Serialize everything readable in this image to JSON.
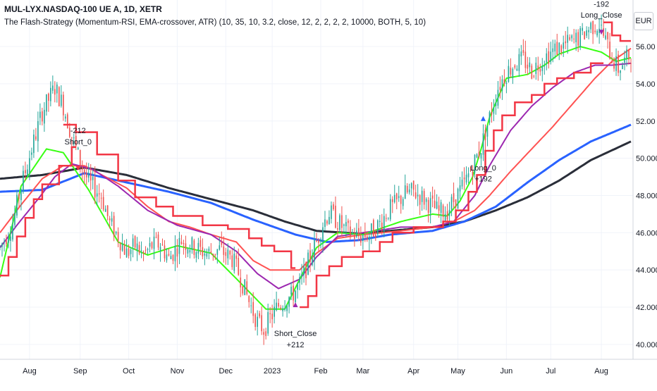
{
  "header": {
    "symbol": "MUL-LYX.NASDAQ-100 UE A, 1D, XETR",
    "indicator": "The Flash-Strategy (Momentum-RSI, EMA-crossover, ATR) (10, 35, 10, 3.2, close, 12, 2, 2, 2, 2, 10000, BOTH, 5, 10)",
    "currency": "EUR"
  },
  "colors": {
    "up": "#26a69a",
    "down": "#ef5350",
    "sma200": "#2a2e39",
    "ema100": "#2962ff",
    "ema_fast": "#39ff14",
    "ema_mid": "#9c27b0",
    "ema_slow": "#ff5252",
    "stop": "#f23645",
    "grid": "#f0f3fa",
    "axis_text": "#131722"
  },
  "chart_data": {
    "type": "candlestick",
    "title": "MUL-LYX.NASDAQ-100 UE A, 1D, XETR",
    "ylim": [
      39.2,
      58.5
    ],
    "xlim": [
      0,
      300
    ],
    "y_ticks": [
      "40.000",
      "42.000",
      "44.000",
      "46.000",
      "48.000",
      "50.000",
      "52.00",
      "54.00",
      "56.00"
    ],
    "y_tick_values": [
      40,
      42,
      44,
      46,
      48,
      50,
      52,
      54,
      56
    ],
    "x_ticks": [
      {
        "label": "Aug",
        "day": 14
      },
      {
        "label": "Sep",
        "day": 38
      },
      {
        "label": "Oct",
        "day": 61
      },
      {
        "label": "Nov",
        "day": 84
      },
      {
        "label": "Dec",
        "day": 107
      },
      {
        "label": "2023",
        "day": 129
      },
      {
        "label": "Feb",
        "day": 152
      },
      {
        "label": "Mar",
        "day": 172
      },
      {
        "label": "Apr",
        "day": 196
      },
      {
        "label": "May",
        "day": 217
      },
      {
        "label": "Jun",
        "day": 240
      },
      {
        "label": "Jul",
        "day": 261
      },
      {
        "label": "Aug",
        "day": 285
      }
    ],
    "price_anchors": [
      [
        0,
        45.2
      ],
      [
        6,
        46.5
      ],
      [
        10,
        48.5
      ],
      [
        15,
        50.5
      ],
      [
        20,
        52.5
      ],
      [
        26,
        53.8
      ],
      [
        30,
        52.8
      ],
      [
        34,
        51.2
      ],
      [
        38,
        49.8
      ],
      [
        42,
        48.7
      ],
      [
        48,
        48
      ],
      [
        52,
        46.5
      ],
      [
        56,
        45.8
      ],
      [
        60,
        44.9
      ],
      [
        64,
        45.3
      ],
      [
        68,
        44.8
      ],
      [
        72,
        45.3
      ],
      [
        76,
        45.4
      ],
      [
        80,
        44.6
      ],
      [
        86,
        45.6
      ],
      [
        92,
        45.2
      ],
      [
        98,
        44.9
      ],
      [
        104,
        45.1
      ],
      [
        110,
        44.6
      ],
      [
        114,
        43.6
      ],
      [
        118,
        42.3
      ],
      [
        122,
        41.2
      ],
      [
        125,
        40.8
      ],
      [
        128,
        41.4
      ],
      [
        132,
        42.1
      ],
      [
        135,
        42.4
      ],
      [
        138,
        42.6
      ],
      [
        142,
        43.2
      ],
      [
        146,
        44.4
      ],
      [
        150,
        45.5
      ],
      [
        153,
        46.5
      ],
      [
        156,
        47.1
      ],
      [
        160,
        46.6
      ],
      [
        164,
        46.1
      ],
      [
        170,
        45.8
      ],
      [
        175,
        45.9
      ],
      [
        180,
        46.5
      ],
      [
        184,
        47.2
      ],
      [
        188,
        47.6
      ],
      [
        192,
        48.1
      ],
      [
        196,
        48.2
      ],
      [
        200,
        47.9
      ],
      [
        204,
        47.5
      ],
      [
        208,
        47.1
      ],
      [
        212,
        47.2
      ],
      [
        216,
        47.9
      ],
      [
        220,
        48.6
      ],
      [
        224,
        49.6
      ],
      [
        228,
        50.6
      ],
      [
        232,
        52.2
      ],
      [
        236,
        53.8
      ],
      [
        240,
        54.6
      ],
      [
        244,
        55.1
      ],
      [
        248,
        55.3
      ],
      [
        252,
        54.7
      ],
      [
        256,
        55.2
      ],
      [
        260,
        55.6
      ],
      [
        264,
        55.9
      ],
      [
        268,
        56.1
      ],
      [
        272,
        56.3
      ],
      [
        276,
        56.6
      ],
      [
        280,
        57.1
      ],
      [
        284,
        57.2
      ],
      [
        287,
        56.3
      ],
      [
        290,
        55.4
      ],
      [
        293,
        54.8
      ],
      [
        296,
        55.2
      ],
      [
        299,
        55.6
      ]
    ],
    "ema_fast_anchors": [
      [
        0,
        43.6
      ],
      [
        6,
        46.5
      ],
      [
        10,
        48.5
      ],
      [
        16,
        49.5
      ],
      [
        22,
        50.5
      ],
      [
        30,
        50.3
      ],
      [
        36,
        49.3
      ],
      [
        42,
        48.3
      ],
      [
        56,
        45.5
      ],
      [
        70,
        44.8
      ],
      [
        84,
        45.3
      ],
      [
        100,
        44.9
      ],
      [
        114,
        43.3
      ],
      [
        126,
        41.9
      ],
      [
        135,
        41.9
      ],
      [
        142,
        43.5
      ],
      [
        150,
        45.2
      ],
      [
        160,
        46.0
      ],
      [
        172,
        45.9
      ],
      [
        190,
        46.6
      ],
      [
        205,
        47.0
      ],
      [
        212,
        46.9
      ],
      [
        218,
        47.7
      ],
      [
        224,
        49.0
      ],
      [
        228,
        50.5
      ],
      [
        232,
        52.2
      ],
      [
        240,
        54.3
      ],
      [
        250,
        54.5
      ],
      [
        258,
        55.0
      ],
      [
        265,
        55.6
      ],
      [
        275,
        56.0
      ],
      [
        285,
        55.7
      ],
      [
        292,
        55.2
      ],
      [
        299,
        55.4
      ]
    ],
    "ema_mid_anchors": [
      [
        0,
        45.2
      ],
      [
        8,
        46.4
      ],
      [
        18,
        47.8
      ],
      [
        26,
        49.0
      ],
      [
        34,
        49.7
      ],
      [
        44,
        49.4
      ],
      [
        56,
        48.5
      ],
      [
        70,
        47.2
      ],
      [
        84,
        46.4
      ],
      [
        100,
        45.9
      ],
      [
        112,
        45.0
      ],
      [
        122,
        43.8
      ],
      [
        132,
        43.0
      ],
      [
        142,
        43.5
      ],
      [
        150,
        44.7
      ],
      [
        160,
        45.8
      ],
      [
        172,
        46.0
      ],
      [
        190,
        46.3
      ],
      [
        205,
        46.3
      ],
      [
        215,
        46.6
      ],
      [
        225,
        48.0
      ],
      [
        232,
        49.6
      ],
      [
        242,
        51.5
      ],
      [
        252,
        52.8
      ],
      [
        262,
        53.8
      ],
      [
        272,
        54.6
      ],
      [
        282,
        55.0
      ],
      [
        290,
        55.0
      ],
      [
        299,
        55.1
      ]
    ],
    "ema_slow_anchors": [
      [
        0,
        46.0
      ],
      [
        10,
        47.5
      ],
      [
        20,
        48.9
      ],
      [
        30,
        49.6
      ],
      [
        40,
        49.6
      ],
      [
        50,
        49.0
      ],
      [
        60,
        48.4
      ],
      [
        70,
        47.4
      ],
      [
        80,
        46.6
      ],
      [
        90,
        46.3
      ],
      [
        100,
        45.9
      ],
      [
        112,
        45.5
      ],
      [
        120,
        44.5
      ],
      [
        128,
        44.0
      ],
      [
        135,
        44.0
      ],
      [
        142,
        44.0
      ],
      [
        150,
        44.9
      ],
      [
        160,
        45.7
      ],
      [
        172,
        45.9
      ],
      [
        190,
        46.1
      ],
      [
        205,
        46.3
      ],
      [
        215,
        46.6
      ],
      [
        225,
        47.2
      ],
      [
        232,
        48.0
      ],
      [
        242,
        49.3
      ],
      [
        252,
        50.5
      ],
      [
        262,
        51.7
      ],
      [
        272,
        53.0
      ],
      [
        282,
        54.3
      ],
      [
        290,
        55.2
      ],
      [
        299,
        55.9
      ]
    ],
    "ema100_anchors": [
      [
        0,
        48.2
      ],
      [
        20,
        48.3
      ],
      [
        40,
        49.2
      ],
      [
        60,
        48.7
      ],
      [
        80,
        48.2
      ],
      [
        100,
        47.6
      ],
      [
        120,
        46.7
      ],
      [
        140,
        45.9
      ],
      [
        155,
        45.5
      ],
      [
        170,
        45.6
      ],
      [
        185,
        45.9
      ],
      [
        205,
        46.1
      ],
      [
        220,
        46.6
      ],
      [
        235,
        47.4
      ],
      [
        250,
        48.7
      ],
      [
        265,
        49.9
      ],
      [
        280,
        50.9
      ],
      [
        299,
        51.8
      ]
    ],
    "sma200_anchors": [
      [
        0,
        48.9
      ],
      [
        20,
        49.1
      ],
      [
        40,
        49.5
      ],
      [
        60,
        49.1
      ],
      [
        80,
        48.4
      ],
      [
        100,
        47.8
      ],
      [
        120,
        47.2
      ],
      [
        135,
        46.6
      ],
      [
        150,
        46.1
      ],
      [
        170,
        45.95
      ],
      [
        185,
        46.1
      ],
      [
        205,
        46.3
      ],
      [
        220,
        46.6
      ],
      [
        235,
        47.2
      ],
      [
        250,
        47.9
      ],
      [
        265,
        48.8
      ],
      [
        280,
        49.9
      ],
      [
        299,
        50.9
      ]
    ],
    "stop_upper": [
      [
        30,
        51.8
      ],
      [
        36,
        51.8
      ],
      [
        36,
        51.4
      ],
      [
        46,
        51.4
      ],
      [
        46,
        50.2
      ],
      [
        56,
        50.2
      ],
      [
        56,
        48.8
      ],
      [
        64,
        48.8
      ],
      [
        64,
        47.9
      ],
      [
        74,
        47.9
      ],
      [
        74,
        47.4
      ],
      [
        82,
        47.4
      ],
      [
        82,
        46.9
      ],
      [
        96,
        46.9
      ],
      [
        96,
        46.4
      ],
      [
        108,
        46.4
      ],
      [
        108,
        46.2
      ],
      [
        118,
        46.2
      ],
      [
        118,
        45.7
      ],
      [
        124,
        45.7
      ],
      [
        124,
        45.3
      ],
      [
        130,
        45.3
      ],
      [
        130,
        45.0
      ],
      [
        138,
        45.0
      ],
      [
        138,
        44.1
      ],
      [
        140,
        44.1
      ]
    ],
    "stop_lower": [
      [
        0,
        43.7
      ],
      [
        4,
        43.7
      ],
      [
        4,
        44.7
      ],
      [
        8,
        44.7
      ],
      [
        8,
        45.8
      ],
      [
        12,
        45.8
      ],
      [
        12,
        46.8
      ],
      [
        16,
        46.8
      ],
      [
        16,
        47.8
      ],
      [
        20,
        47.8
      ],
      [
        20,
        48.6
      ],
      [
        28,
        48.6
      ],
      [
        28,
        49.6
      ],
      [
        34,
        49.6
      ],
      [
        34,
        50.6
      ],
      [
        36,
        50.6
      ]
    ],
    "stop_lower2": [
      [
        142,
        42.0
      ],
      [
        146,
        42.0
      ],
      [
        146,
        42.6
      ],
      [
        150,
        42.6
      ],
      [
        150,
        43.7
      ],
      [
        156,
        43.7
      ],
      [
        156,
        44.2
      ],
      [
        162,
        44.2
      ],
      [
        162,
        44.7
      ],
      [
        172,
        44.7
      ],
      [
        172,
        45.0
      ],
      [
        180,
        45.0
      ],
      [
        180,
        45.5
      ],
      [
        186,
        45.5
      ],
      [
        186,
        46.0
      ],
      [
        196,
        46.0
      ],
      [
        196,
        46.3
      ],
      [
        210,
        46.3
      ],
      [
        210,
        46.6
      ],
      [
        216,
        46.6
      ],
      [
        216,
        47.2
      ],
      [
        222,
        47.2
      ],
      [
        222,
        48.2
      ],
      [
        226,
        48.2
      ],
      [
        226,
        49.1
      ],
      [
        230,
        49.1
      ],
      [
        230,
        50.4
      ],
      [
        234,
        50.4
      ],
      [
        234,
        51.5
      ],
      [
        238,
        51.5
      ],
      [
        238,
        52.3
      ],
      [
        244,
        52.3
      ],
      [
        244,
        53.0
      ],
      [
        252,
        53.0
      ],
      [
        252,
        53.4
      ],
      [
        258,
        53.4
      ],
      [
        258,
        54.0
      ],
      [
        264,
        54.0
      ],
      [
        264,
        54.3
      ],
      [
        272,
        54.3
      ],
      [
        272,
        54.6
      ],
      [
        280,
        54.6
      ],
      [
        280,
        55.1
      ],
      [
        286,
        55.1
      ]
    ],
    "stop_upper2": [
      [
        286,
        57.3
      ],
      [
        290,
        57.3
      ],
      [
        290,
        56.6
      ],
      [
        294,
        56.6
      ],
      [
        294,
        56.3
      ],
      [
        299,
        56.3
      ]
    ],
    "signals": [
      {
        "label": "-212",
        "day": 37,
        "price": 51.5,
        "dir": "down",
        "color": "#f23645",
        "text_above": true
      },
      {
        "label": "Short_0",
        "day": 37,
        "price": 50.9,
        "dir": "down",
        "color": "#f23645",
        "text_above": true
      },
      {
        "label": "Short_Close",
        "day": 140,
        "price": 40.6,
        "dir": "up",
        "color": "#9c27b0",
        "text_above": false
      },
      {
        "label": "+212",
        "day": 140,
        "price": 40.0,
        "dir": "up",
        "color": "#9c27b0",
        "text_above": false
      },
      {
        "label": "Long_0",
        "day": 229,
        "price": 49.5,
        "dir": "up",
        "color": "#2962ff",
        "text_above": false
      },
      {
        "label": "+192",
        "day": 229,
        "price": 48.9,
        "dir": "up",
        "color": "#2962ff",
        "text_above": false
      },
      {
        "label": "-192",
        "day": 285,
        "price": 58.3,
        "dir": "down",
        "color": "#9c27b0",
        "text_above": true
      },
      {
        "label": "Long_Close",
        "day": 285,
        "price": 57.7,
        "dir": "down",
        "color": "#9c27b0",
        "text_above": true
      }
    ]
  }
}
